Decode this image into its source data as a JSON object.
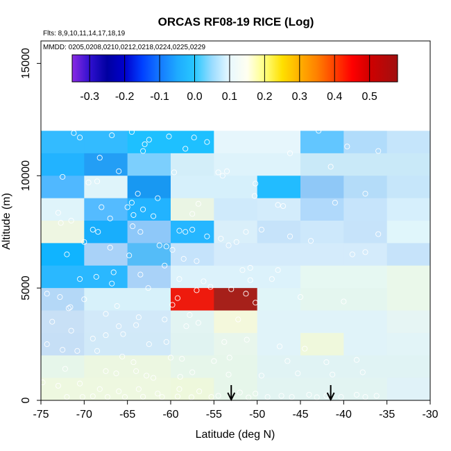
{
  "chart_data": {
    "type": "heatmap",
    "title": "ORCAS RF08-19 RICE (Log)",
    "flights_note": "Flts: 8,9,10,11,14,17,18,19",
    "dates_note": "MMDD: 0205,0208,0210,0212,0218,0224,0225,0229",
    "xlabel": "Latitude (deg N)",
    "ylabel": "Altitude (m)",
    "xlim": [
      -75,
      -30
    ],
    "ylim": [
      0,
      16000
    ],
    "x_ticks": [
      -75,
      -70,
      -65,
      -60,
      -55,
      -50,
      -45,
      -40,
      -35,
      -30
    ],
    "y_ticks": [
      0,
      5000,
      10000,
      15000
    ],
    "colorbar": {
      "range": [
        -0.35,
        0.58
      ],
      "ticks": [
        -0.3,
        -0.2,
        -0.1,
        0.0,
        0.1,
        0.2,
        0.3,
        0.4,
        0.5
      ],
      "tick_labels": [
        "-0.3",
        "-0.2",
        "-0.1",
        "0.0",
        "0.1",
        "0.2",
        "0.3",
        "0.4",
        "0.5"
      ],
      "stops": [
        {
          "v": -0.35,
          "c": "#8a2be2"
        },
        {
          "v": -0.3,
          "c": "#3010d0"
        },
        {
          "v": -0.25,
          "c": "#0000a0"
        },
        {
          "v": -0.2,
          "c": "#0000cd"
        },
        {
          "v": -0.15,
          "c": "#0040ff"
        },
        {
          "v": -0.1,
          "c": "#1478ff"
        },
        {
          "v": -0.05,
          "c": "#1eaaff"
        },
        {
          "v": 0.0,
          "c": "#28c8ff"
        },
        {
          "v": 0.05,
          "c": "#9adcff"
        },
        {
          "v": 0.1,
          "c": "#e8f8ff"
        },
        {
          "v": 0.15,
          "c": "#fffff0"
        },
        {
          "v": 0.2,
          "c": "#ffff80"
        },
        {
          "v": 0.25,
          "c": "#ffe000"
        },
        {
          "v": 0.3,
          "c": "#ffb000"
        },
        {
          "v": 0.35,
          "c": "#ff8000"
        },
        {
          "v": 0.4,
          "c": "#ff4000"
        },
        {
          "v": 0.45,
          "c": "#ff0000"
        },
        {
          "v": 0.5,
          "c": "#d00000"
        },
        {
          "v": 0.58,
          "c": "#a01010"
        }
      ]
    },
    "bin_width_deg": 5,
    "bin_height_m": 1000,
    "lat_bins": [
      -75,
      -70,
      -65,
      -60,
      -55,
      -50,
      -45,
      -40,
      -35
    ],
    "alt_bins": [
      0,
      1000,
      2000,
      3000,
      4000,
      5000,
      6000,
      7000,
      8000,
      9000,
      10000,
      11000,
      12000
    ],
    "cells": [
      {
        "lat": -75,
        "alt": 11000,
        "c": "#33bbff"
      },
      {
        "lat": -70,
        "alt": 11000,
        "c": "#33bbff"
      },
      {
        "lat": -65,
        "alt": 11000,
        "c": "#1ec0ff"
      },
      {
        "lat": -60,
        "alt": 11000,
        "c": "#1ec0ff"
      },
      {
        "lat": -55,
        "alt": 11000,
        "c": "#e6f6fc"
      },
      {
        "lat": -50,
        "alt": 11000,
        "c": "#e6f6fc"
      },
      {
        "lat": -45,
        "alt": 11000,
        "c": "#62c6ff"
      },
      {
        "lat": -40,
        "alt": 11000,
        "c": "#b1dcfb"
      },
      {
        "lat": -35,
        "alt": 11000,
        "c": "#c5e5fb"
      },
      {
        "lat": -75,
        "alt": 10000,
        "c": "#22b3ff"
      },
      {
        "lat": -70,
        "alt": 10000,
        "c": "#239ef5"
      },
      {
        "lat": -65,
        "alt": 10000,
        "c": "#7ccffd"
      },
      {
        "lat": -60,
        "alt": 10000,
        "c": "#d3eef9"
      },
      {
        "lat": -55,
        "alt": 10000,
        "c": "#def3fb"
      },
      {
        "lat": -50,
        "alt": 10000,
        "c": "#def3fb"
      },
      {
        "lat": -45,
        "alt": 10000,
        "c": "#c9e9f8"
      },
      {
        "lat": -40,
        "alt": 10000,
        "c": "#c9e9f8"
      },
      {
        "lat": -35,
        "alt": 10000,
        "c": "#c9e9f8"
      },
      {
        "lat": -75,
        "alt": 9000,
        "c": "#50b8ff"
      },
      {
        "lat": -70,
        "alt": 9000,
        "c": "#dff4fa"
      },
      {
        "lat": -65,
        "alt": 9000,
        "c": "#1898f2"
      },
      {
        "lat": -60,
        "alt": 9000,
        "c": "#d6f0fb"
      },
      {
        "lat": -55,
        "alt": 9000,
        "c": "#d6f0fb"
      },
      {
        "lat": -50,
        "alt": 9000,
        "c": "#22bcff"
      },
      {
        "lat": -45,
        "alt": 9000,
        "c": "#8fc8f7"
      },
      {
        "lat": -40,
        "alt": 9000,
        "c": "#b4dcf9"
      },
      {
        "lat": -35,
        "alt": 9000,
        "c": "#c6e6fa"
      },
      {
        "lat": -75,
        "alt": 8000,
        "c": "#dff4fa"
      },
      {
        "lat": -70,
        "alt": 8000,
        "c": "#54bbff"
      },
      {
        "lat": -65,
        "alt": 8000,
        "c": "#22b3ff"
      },
      {
        "lat": -60,
        "alt": 8000,
        "c": "#eaf5e4"
      },
      {
        "lat": -55,
        "alt": 8000,
        "c": "#cfeafb"
      },
      {
        "lat": -50,
        "alt": 8000,
        "c": "#d3ecfb"
      },
      {
        "lat": -45,
        "alt": 8000,
        "c": "#b0d9fb"
      },
      {
        "lat": -40,
        "alt": 8000,
        "c": "#c6e4fb"
      },
      {
        "lat": -35,
        "alt": 8000,
        "c": "#d6effc"
      },
      {
        "lat": -75,
        "alt": 7000,
        "c": "#eef6e2"
      },
      {
        "lat": -70,
        "alt": 7000,
        "c": "#18aefc"
      },
      {
        "lat": -65,
        "alt": 7000,
        "c": "#8ec8f9"
      },
      {
        "lat": -60,
        "alt": 7000,
        "c": "#25b6ff"
      },
      {
        "lat": -55,
        "alt": 7000,
        "c": "#d9effa"
      },
      {
        "lat": -50,
        "alt": 7000,
        "c": "#c6e3fa"
      },
      {
        "lat": -45,
        "alt": 7000,
        "c": "#cde8fb"
      },
      {
        "lat": -40,
        "alt": 7000,
        "c": "#c6e3fa"
      },
      {
        "lat": -35,
        "alt": 7000,
        "c": "#e0f6fb"
      },
      {
        "lat": -75,
        "alt": 6000,
        "c": "#10b4ff"
      },
      {
        "lat": -70,
        "alt": 6000,
        "c": "#a9d2f8"
      },
      {
        "lat": -65,
        "alt": 6000,
        "c": "#54bcf8"
      },
      {
        "lat": -60,
        "alt": 6000,
        "c": "#c5e3fb"
      },
      {
        "lat": -55,
        "alt": 6000,
        "c": "#d4ebfb"
      },
      {
        "lat": -50,
        "alt": 6000,
        "c": "#d4ebfb"
      },
      {
        "lat": -45,
        "alt": 6000,
        "c": "#d4ebfb"
      },
      {
        "lat": -40,
        "alt": 6000,
        "c": "#d4ebfb"
      },
      {
        "lat": -35,
        "alt": 6000,
        "c": "#c6e3fa"
      },
      {
        "lat": -75,
        "alt": 5000,
        "c": "#2ab8ff"
      },
      {
        "lat": -70,
        "alt": 5000,
        "c": "#2ab8ff"
      },
      {
        "lat": -65,
        "alt": 5000,
        "c": "#a9d2f8"
      },
      {
        "lat": -60,
        "alt": 5000,
        "c": "#dcf2fb"
      },
      {
        "lat": -55,
        "alt": 5000,
        "c": "#dcf2fb"
      },
      {
        "lat": -50,
        "alt": 5000,
        "c": "#dcf2fb"
      },
      {
        "lat": -45,
        "alt": 5000,
        "c": "#e6f8f2"
      },
      {
        "lat": -40,
        "alt": 5000,
        "c": "#e6f8f2"
      },
      {
        "lat": -35,
        "alt": 5000,
        "c": "#eaf8ea"
      },
      {
        "lat": -75,
        "alt": 4000,
        "c": "#b4d8f7"
      },
      {
        "lat": -70,
        "alt": 4000,
        "c": "#d7f1fa"
      },
      {
        "lat": -65,
        "alt": 4000,
        "c": "#d7f1fa"
      },
      {
        "lat": -60,
        "alt": 4000,
        "c": "#ee1a0d"
      },
      {
        "lat": -55,
        "alt": 4000,
        "c": "#a6201a"
      },
      {
        "lat": -50,
        "alt": 4000,
        "c": "#e0f5f8"
      },
      {
        "lat": -45,
        "alt": 4000,
        "c": "#e4f6ef"
      },
      {
        "lat": -40,
        "alt": 4000,
        "c": "#e4f6ef"
      },
      {
        "lat": -35,
        "alt": 4000,
        "c": "#eaf8ea"
      },
      {
        "lat": -75,
        "alt": 3000,
        "c": "#c8e0f6"
      },
      {
        "lat": -70,
        "alt": 3000,
        "c": "#d2e9f9"
      },
      {
        "lat": -65,
        "alt": 3000,
        "c": "#d2e9f9"
      },
      {
        "lat": -60,
        "alt": 3000,
        "c": "#e2f4f2"
      },
      {
        "lat": -55,
        "alt": 3000,
        "c": "#f4f8dc"
      },
      {
        "lat": -50,
        "alt": 3000,
        "c": "#e0f3f9"
      },
      {
        "lat": -45,
        "alt": 3000,
        "c": "#e0f3f9"
      },
      {
        "lat": -40,
        "alt": 3000,
        "c": "#e0f3f9"
      },
      {
        "lat": -35,
        "alt": 3000,
        "c": "#e6f5f4"
      },
      {
        "lat": -75,
        "alt": 2000,
        "c": "#c6dff6"
      },
      {
        "lat": -70,
        "alt": 2000,
        "c": "#d1e9f8"
      },
      {
        "lat": -65,
        "alt": 2000,
        "c": "#d1e9f8"
      },
      {
        "lat": -60,
        "alt": 2000,
        "c": "#e0f3f1"
      },
      {
        "lat": -55,
        "alt": 2000,
        "c": "#e8f6ec"
      },
      {
        "lat": -50,
        "alt": 2000,
        "c": "#e0f3f9"
      },
      {
        "lat": -45,
        "alt": 2000,
        "c": "#eff8dc"
      },
      {
        "lat": -40,
        "alt": 2000,
        "c": "#e0f3f9"
      },
      {
        "lat": -35,
        "alt": 2000,
        "c": "#e2f4f7"
      },
      {
        "lat": -75,
        "alt": 1000,
        "c": "#e6f6ea"
      },
      {
        "lat": -70,
        "alt": 1000,
        "c": "#ecf7e1"
      },
      {
        "lat": -65,
        "alt": 1000,
        "c": "#ecf7e1"
      },
      {
        "lat": -60,
        "alt": 1000,
        "c": "#e6f6ea"
      },
      {
        "lat": -55,
        "alt": 1000,
        "c": "#e6f6ea"
      },
      {
        "lat": -50,
        "alt": 1000,
        "c": "#e0f3f4"
      },
      {
        "lat": -45,
        "alt": 1000,
        "c": "#e0f3f4"
      },
      {
        "lat": -40,
        "alt": 1000,
        "c": "#e0f3f4"
      },
      {
        "lat": -35,
        "alt": 1000,
        "c": "#e0f3f4"
      },
      {
        "lat": -75,
        "alt": 0,
        "c": "#eef8e0"
      },
      {
        "lat": -70,
        "alt": 0,
        "c": "#eef8e0"
      },
      {
        "lat": -65,
        "alt": 0,
        "c": "#eef8e0"
      },
      {
        "lat": -60,
        "alt": 0,
        "c": "#eef8dc"
      },
      {
        "lat": -55,
        "alt": 0,
        "c": "#e6f6ea"
      },
      {
        "lat": -50,
        "alt": 0,
        "c": "#e2f4f2"
      },
      {
        "lat": -45,
        "alt": 0,
        "c": "#e2f4f2"
      },
      {
        "lat": -40,
        "alt": 0,
        "c": "#e2f4f2"
      },
      {
        "lat": -35,
        "alt": 0,
        "c": "#e0f2f8"
      }
    ],
    "points": [
      [
        -71.2,
        11900
      ],
      [
        -70.5,
        11700
      ],
      [
        -66.8,
        11800
      ],
      [
        -64.5,
        11950
      ],
      [
        -62.5,
        11600
      ],
      [
        -60.2,
        11750
      ],
      [
        -57.3,
        11700
      ],
      [
        -55.8,
        11500
      ],
      [
        -63.2,
        11100
      ],
      [
        -58.3,
        11200
      ],
      [
        -63.0,
        11400
      ],
      [
        -46.2,
        11000
      ],
      [
        -39.6,
        11300
      ],
      [
        -42.9,
        12000
      ],
      [
        -36.0,
        11100
      ],
      [
        -68.2,
        10800
      ],
      [
        -72.5,
        9950
      ],
      [
        -66.0,
        10200
      ],
      [
        -59.6,
        10150
      ],
      [
        -54.5,
        10150
      ],
      [
        -54.0,
        10000
      ],
      [
        -53.5,
        10200
      ],
      [
        -41.5,
        10400
      ],
      [
        -68.5,
        9750
      ],
      [
        -69.5,
        9700
      ],
      [
        -50.2,
        9650
      ],
      [
        -50.3,
        9100
      ],
      [
        -37.5,
        9200
      ],
      [
        -61.5,
        9000
      ],
      [
        -63.8,
        9200
      ],
      [
        -73.0,
        8350
      ],
      [
        -71.5,
        8000
      ],
      [
        -68.0,
        8600
      ],
      [
        -64.5,
        8800
      ],
      [
        -65.0,
        8600
      ],
      [
        -62.0,
        8200
      ],
      [
        -63.2,
        8500
      ],
      [
        -64.3,
        8250
      ],
      [
        -56.8,
        8750
      ],
      [
        -57.5,
        8300
      ],
      [
        -47.6,
        8700
      ],
      [
        -47.0,
        8650
      ],
      [
        -41.0,
        8800
      ],
      [
        -72.7,
        7900
      ],
      [
        -67.0,
        8100
      ],
      [
        -69.0,
        7600
      ],
      [
        -68.4,
        7500
      ],
      [
        -64.4,
        7750
      ],
      [
        -63.5,
        7500
      ],
      [
        -59.0,
        7550
      ],
      [
        -58.3,
        7500
      ],
      [
        -57.5,
        7600
      ],
      [
        -55.8,
        7300
      ],
      [
        -51.3,
        7500
      ],
      [
        -49.5,
        7600
      ],
      [
        -46.2,
        7300
      ],
      [
        -36.0,
        7400
      ],
      [
        -43.8,
        7100
      ],
      [
        -54.2,
        7200
      ],
      [
        -64.8,
        6450
      ],
      [
        -67.0,
        6800
      ],
      [
        -70.0,
        7050
      ],
      [
        -72.0,
        6500
      ],
      [
        -61.3,
        6900
      ],
      [
        -60.5,
        6850
      ],
      [
        -59.8,
        6700
      ],
      [
        -58.5,
        6300
      ],
      [
        -53.3,
        6900
      ],
      [
        -52.4,
        7050
      ],
      [
        -37.5,
        6600
      ],
      [
        -39.0,
        6500
      ],
      [
        -57.0,
        6200
      ],
      [
        -50.8,
        5900
      ],
      [
        -51.7,
        5800
      ],
      [
        -47.6,
        5800
      ],
      [
        -63.5,
        5600
      ],
      [
        -66.6,
        5700
      ],
      [
        -60.7,
        6000
      ],
      [
        -68.6,
        5500
      ],
      [
        -70.5,
        5400
      ],
      [
        -66.8,
        5200
      ],
      [
        -62.6,
        5000
      ],
      [
        -56.2,
        5300
      ],
      [
        -55.4,
        5050
      ],
      [
        -50.8,
        5350
      ],
      [
        -53.0,
        4950
      ],
      [
        -57.0,
        4900
      ],
      [
        -59.0,
        5400
      ],
      [
        -48.3,
        5400
      ],
      [
        -74.3,
        4750
      ],
      [
        -72.8,
        4600
      ],
      [
        -70.0,
        4500
      ],
      [
        -71.6,
        4150
      ],
      [
        -71.8,
        4100
      ],
      [
        -66.2,
        4200
      ],
      [
        -59.2,
        4550
      ],
      [
        -59.8,
        4250
      ],
      [
        -51.3,
        4750
      ],
      [
        -50.2,
        4350
      ],
      [
        -45.0,
        4600
      ],
      [
        -40.0,
        4400
      ],
      [
        -57.8,
        3800
      ],
      [
        -60.7,
        3600
      ],
      [
        -63.7,
        3700
      ],
      [
        -67.5,
        3850
      ],
      [
        -73.7,
        3500
      ],
      [
        -66.0,
        3300
      ],
      [
        -64.0,
        3350
      ],
      [
        -56.8,
        3450
      ],
      [
        -52.2,
        3600
      ],
      [
        -58.2,
        3300
      ],
      [
        -71.5,
        3100
      ],
      [
        -69.0,
        2750
      ],
      [
        -67.5,
        2900
      ],
      [
        -65.5,
        2950
      ],
      [
        -60.5,
        2600
      ],
      [
        -62.5,
        2500
      ],
      [
        -53.8,
        2600
      ],
      [
        -51.2,
        2700
      ],
      [
        -47.4,
        2400
      ],
      [
        -44.5,
        2300
      ],
      [
        -74.3,
        2500
      ],
      [
        -72.5,
        2250
      ],
      [
        -70.8,
        2200
      ],
      [
        -68.5,
        2200
      ],
      [
        -65.6,
        1950
      ],
      [
        -64.3,
        1700
      ],
      [
        -60.0,
        1900
      ],
      [
        -58.7,
        1850
      ],
      [
        -55.0,
        1750
      ],
      [
        -53.2,
        1900
      ],
      [
        -46.5,
        1750
      ],
      [
        -42.0,
        1700
      ],
      [
        -38.5,
        1800
      ],
      [
        -72.2,
        1400
      ],
      [
        -67.5,
        1300
      ],
      [
        -66.3,
        1200
      ],
      [
        -64.0,
        1300
      ],
      [
        -62.8,
        1100
      ],
      [
        -62.0,
        1000
      ],
      [
        -58.9,
        1050
      ],
      [
        -57.5,
        1250
      ],
      [
        -53.3,
        1150
      ],
      [
        -49.5,
        1100
      ],
      [
        -45.3,
        1200
      ],
      [
        -41.3,
        1150
      ],
      [
        -37.8,
        1250
      ],
      [
        -74.8,
        800
      ],
      [
        -73.0,
        650
      ],
      [
        -70.5,
        750
      ],
      [
        -68.2,
        500
      ],
      [
        -66.0,
        400
      ],
      [
        -63.7,
        500
      ],
      [
        -61.5,
        300
      ],
      [
        -59.0,
        500
      ],
      [
        -56.7,
        400
      ],
      [
        -54.5,
        200
      ],
      [
        -52.0,
        350
      ],
      [
        -50.2,
        300
      ],
      [
        -47.2,
        200
      ],
      [
        -44.0,
        250
      ],
      [
        -42.0,
        200
      ],
      [
        -38.5,
        250
      ],
      [
        -36.2,
        200
      ],
      [
        -72.0,
        150
      ],
      [
        -70.2,
        150
      ],
      [
        -69.0,
        180
      ],
      [
        -67.3,
        150
      ],
      [
        -65.3,
        150
      ],
      [
        -63.2,
        160
      ],
      [
        -61.0,
        150
      ],
      [
        -59.2,
        170
      ],
      [
        -57.6,
        140
      ],
      [
        -55.3,
        150
      ],
      [
        -51.0,
        130
      ],
      [
        -48.8,
        150
      ],
      [
        -46.0,
        150
      ],
      [
        -43.1,
        140
      ],
      [
        -40.3,
        150
      ],
      [
        -37.5,
        150
      ]
    ],
    "arrows_lat": [
      -53.0,
      -41.5
    ]
  }
}
